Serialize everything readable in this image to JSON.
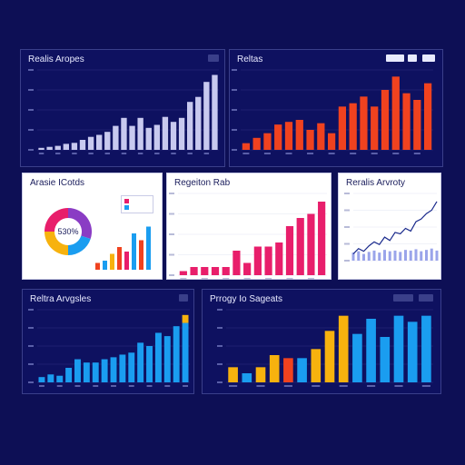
{
  "colors": {
    "background": "#0d0f55",
    "lavender": "#c8c9ef",
    "orange_red": "#f0421f",
    "magenta": "#e81e6b",
    "blue": "#1a9df0",
    "yellow": "#f7b20e",
    "purple": "#8a3cc4"
  },
  "panels": {
    "p1": {
      "title": "Realis Aropes"
    },
    "p2": {
      "title": "Reltas"
    },
    "p3": {
      "title": "Arasie ICotds",
      "legend": [
        "",
        ""
      ]
    },
    "p4": {
      "title": "Regeiton Rab"
    },
    "p5": {
      "title": "Reralis Arvroty"
    },
    "p6": {
      "title": "Reltra Arvgsles"
    },
    "p7": {
      "title": "Prrogy Io Sageats"
    }
  },
  "chart_data": [
    {
      "id": "p1",
      "type": "bar",
      "title": "Realis Aropes",
      "values": [
        2,
        3,
        4,
        6,
        7,
        10,
        13,
        15,
        18,
        24,
        32,
        24,
        32,
        22,
        25,
        33,
        28,
        32,
        48,
        53,
        68,
        75
      ],
      "ylim": [
        0,
        80
      ],
      "colors": [
        "#c8c9ef"
      ]
    },
    {
      "id": "p2",
      "type": "bar",
      "title": "Reltas",
      "values": [
        10,
        18,
        25,
        38,
        42,
        45,
        30,
        40,
        25,
        65,
        70,
        80,
        65,
        90,
        110,
        85,
        75,
        100
      ],
      "ylim": [
        0,
        120
      ],
      "colors": [
        "#f0421f"
      ]
    },
    {
      "id": "p3",
      "type": "pie",
      "title": "Arasie ICotds",
      "center_label": "530%",
      "slices": [
        {
          "value": 30,
          "color": "#8a3cc4"
        },
        {
          "value": 20,
          "color": "#1a9df0"
        },
        {
          "value": 25,
          "color": "#f7b20e"
        },
        {
          "value": 25,
          "color": "#e81e6b"
        }
      ],
      "bars": {
        "values": [
          15,
          20,
          35,
          50,
          40,
          80,
          65,
          95
        ],
        "colors": [
          "#f0421f",
          "#1a9df0",
          "#f7b20e",
          "#f0421f",
          "#e81e6b",
          "#1a9df0",
          "#f0421f",
          "#1a9df0"
        ]
      }
    },
    {
      "id": "p4",
      "type": "bar",
      "title": "Regeiton Rab",
      "values": [
        5,
        10,
        10,
        10,
        10,
        30,
        15,
        35,
        35,
        40,
        60,
        70,
        75,
        90
      ],
      "ylim": [
        0,
        100
      ],
      "colors": [
        "#e81e6b"
      ]
    },
    {
      "id": "p5",
      "type": "line",
      "title": "Reralis Arvroty",
      "line": [
        10,
        18,
        14,
        22,
        28,
        24,
        35,
        30,
        42,
        40,
        48,
        44,
        58,
        62,
        70,
        75,
        88
      ],
      "bars": [
        12,
        14,
        10,
        13,
        15,
        12,
        16,
        14,
        15,
        13,
        16,
        15,
        17,
        14,
        16,
        18,
        15
      ],
      "ylim": [
        0,
        100
      ],
      "colors": [
        "#1a2a8c",
        "#9aa4ea"
      ]
    },
    {
      "id": "p6",
      "type": "bar",
      "title": "Reltra Arvgsles",
      "values": [
        8,
        12,
        10,
        22,
        35,
        30,
        30,
        35,
        38,
        42,
        45,
        60,
        55,
        75,
        70,
        85,
        90
      ],
      "top_segments": [
        0,
        0,
        0,
        0,
        0,
        0,
        0,
        0,
        0,
        0,
        0,
        0,
        0,
        0,
        0,
        0,
        12
      ],
      "ylim": [
        0,
        110
      ],
      "colors": [
        "#1a9df0",
        "#f7b20e"
      ]
    },
    {
      "id": "p7",
      "type": "bar",
      "title": "Prrogy Io Sageats",
      "values": [
        25,
        15,
        25,
        45,
        40,
        40,
        55,
        85,
        110,
        80,
        105,
        75,
        110,
        100,
        110
      ],
      "bar_colors": [
        "#f7b20e",
        "#1a9df0",
        "#f7b20e",
        "#f7b20e",
        "#f0421f",
        "#1a9df0",
        "#f7b20e",
        "#f7b20e",
        "#f7b20e",
        "#1a9df0",
        "#1a9df0",
        "#1a9df0",
        "#1a9df0",
        "#1a9df0",
        "#1a9df0"
      ],
      "ylim": [
        0,
        120
      ]
    }
  ]
}
